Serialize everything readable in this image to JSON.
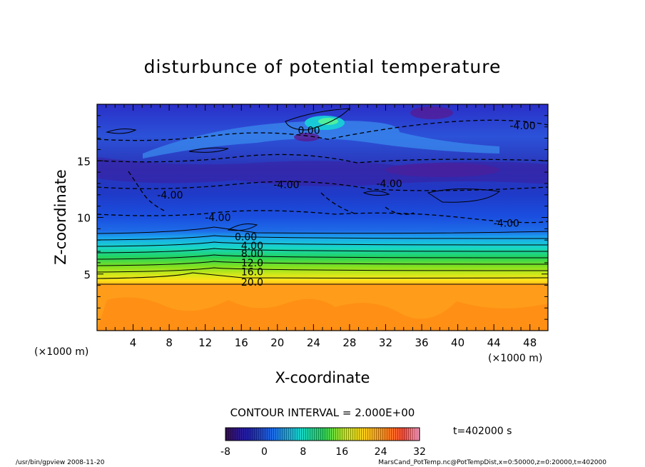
{
  "chart_data": {
    "type": "heatmap",
    "title": "disturbunce of potential temperature",
    "xlabel": "X-coordinate",
    "ylabel": "Z-coordinate",
    "x_unit_left": "(×1000 m)",
    "x_unit_right": "(×1000 m)",
    "xlim": [
      0,
      50
    ],
    "ylim": [
      0,
      20
    ],
    "x_ticks": [
      4,
      8,
      12,
      16,
      20,
      24,
      28,
      32,
      36,
      40,
      44,
      48
    ],
    "y_ticks": [
      5,
      10,
      15
    ],
    "contour_interval_text": "CONTOUR INTERVAL = 2.000E+00",
    "time_text": "t=402000 s",
    "colorbar": {
      "range": [
        -8,
        32
      ],
      "ticks": [
        -8,
        0,
        8,
        16,
        24,
        32
      ]
    },
    "layers": [
      {
        "z": [
          0,
          4
        ],
        "value": 24
      },
      {
        "z": [
          4,
          8
        ],
        "value_range": [
          20,
          2
        ]
      },
      {
        "z": [
          8,
          20
        ],
        "value_range": [
          0,
          -6
        ]
      }
    ],
    "contour_labels": [
      {
        "text": "0.00",
        "x": 23.5,
        "z": 17.7
      },
      {
        "text": "-4.00",
        "x": 47.2,
        "z": 18.1
      },
      {
        "text": "-4.00",
        "x": 21.0,
        "z": 12.9
      },
      {
        "text": "-4.00",
        "x": 32.4,
        "z": 13.0
      },
      {
        "text": "-4.00",
        "x": 8.1,
        "z": 12.0
      },
      {
        "text": "-4.00",
        "x": 13.4,
        "z": 10.0
      },
      {
        "text": "-4.00",
        "x": 45.4,
        "z": 9.5
      },
      {
        "text": "0.00",
        "x": 16.5,
        "z": 8.3
      },
      {
        "text": "4.00",
        "x": 17.2,
        "z": 7.5
      },
      {
        "text": "8.00",
        "x": 17.2,
        "z": 6.8
      },
      {
        "text": "12.0",
        "x": 17.2,
        "z": 6.0
      },
      {
        "text": "16.0",
        "x": 17.2,
        "z": 5.2
      },
      {
        "text": "20.0",
        "x": 17.2,
        "z": 4.3
      }
    ]
  },
  "footer": {
    "left": "/usr/bin/gpview  2008-11-20",
    "right": "MarsCand_PotTemp.nc@PotTempDist,x=0:50000,z=0:20000,t=402000"
  }
}
